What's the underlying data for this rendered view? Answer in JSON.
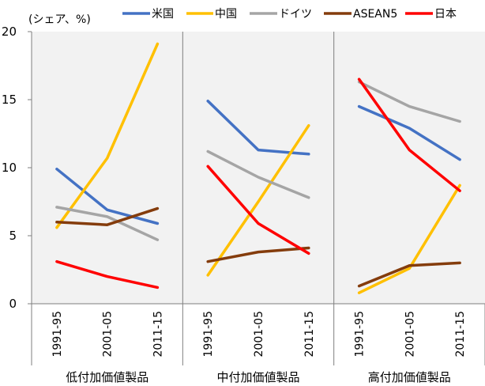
{
  "chart_data": {
    "type": "line",
    "unit_label": "(シェア、%)",
    "ylim": [
      0,
      20
    ],
    "yticks": [
      0,
      5,
      10,
      15,
      20
    ],
    "periods": [
      "1991-95",
      "2001-05",
      "2011-15"
    ],
    "groups": [
      {
        "name": "低付加価値製品",
        "series": [
          {
            "name": "米国",
            "values": [
              9.9,
              6.9,
              5.9
            ]
          },
          {
            "name": "中国",
            "values": [
              5.6,
              10.7,
              19.1
            ]
          },
          {
            "name": "ドイツ",
            "values": [
              7.1,
              6.4,
              4.7
            ]
          },
          {
            "name": "ASEAN5",
            "values": [
              6.0,
              5.8,
              7.0
            ]
          },
          {
            "name": "日本",
            "values": [
              3.1,
              2.0,
              1.2
            ]
          }
        ]
      },
      {
        "name": "中付加価値製品",
        "series": [
          {
            "name": "米国",
            "values": [
              14.9,
              11.3,
              11.0
            ]
          },
          {
            "name": "中国",
            "values": [
              2.1,
              7.5,
              13.1
            ]
          },
          {
            "name": "ドイツ",
            "values": [
              11.2,
              9.3,
              7.8
            ]
          },
          {
            "name": "ASEAN5",
            "values": [
              3.1,
              3.8,
              4.1
            ]
          },
          {
            "name": "日本",
            "values": [
              10.1,
              5.9,
              3.7
            ]
          }
        ]
      },
      {
        "name": "高付加価値製品",
        "series": [
          {
            "name": "米国",
            "values": [
              14.5,
              12.9,
              10.6
            ]
          },
          {
            "name": "中国",
            "values": [
              0.8,
              2.6,
              8.7
            ]
          },
          {
            "name": "ドイツ",
            "values": [
              16.3,
              14.5,
              13.4
            ]
          },
          {
            "name": "ASEAN5",
            "values": [
              1.3,
              2.8,
              3.0
            ]
          },
          {
            "name": "日本",
            "values": [
              16.5,
              11.3,
              8.3
            ]
          }
        ]
      }
    ],
    "legend": [
      {
        "name": "米国",
        "color": "#4472C4"
      },
      {
        "name": "中国",
        "color": "#FFC000"
      },
      {
        "name": "ドイツ",
        "color": "#A5A5A5"
      },
      {
        "name": "ASEAN5",
        "color": "#843C0C"
      },
      {
        "name": "日本",
        "color": "#FF0000"
      }
    ],
    "legend_position": "top",
    "grid": false,
    "panel_background": "#F2F2F2"
  }
}
